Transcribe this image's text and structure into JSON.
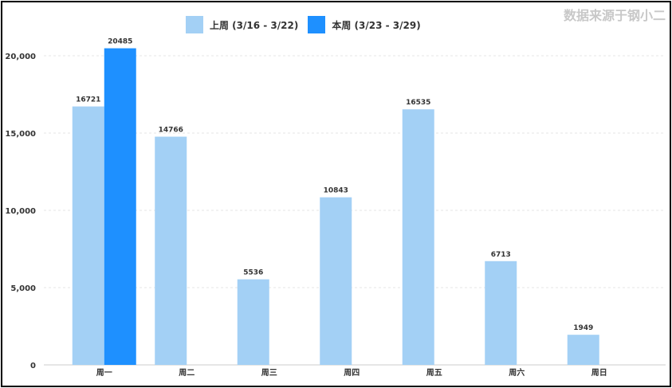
{
  "source_note": "数据来源于钢小二",
  "chart_data": {
    "type": "bar",
    "categories": [
      "周一",
      "周二",
      "周三",
      "周四",
      "周五",
      "周六",
      "周日"
    ],
    "series": [
      {
        "name": "上周 (3/16 - 3/22)",
        "color": "#a3d0f5",
        "values": [
          16721,
          14766,
          5536,
          10843,
          16535,
          6713,
          1949
        ]
      },
      {
        "name": "本周 (3/23 - 3/29)",
        "color": "#1e90ff",
        "values": [
          20485,
          null,
          null,
          null,
          null,
          null,
          null
        ]
      }
    ],
    "yticks": [
      "0",
      "5,000",
      "10,000",
      "15,000",
      "20,000"
    ],
    "ylim": [
      0,
      20000
    ],
    "grid": true,
    "legend": "top"
  }
}
